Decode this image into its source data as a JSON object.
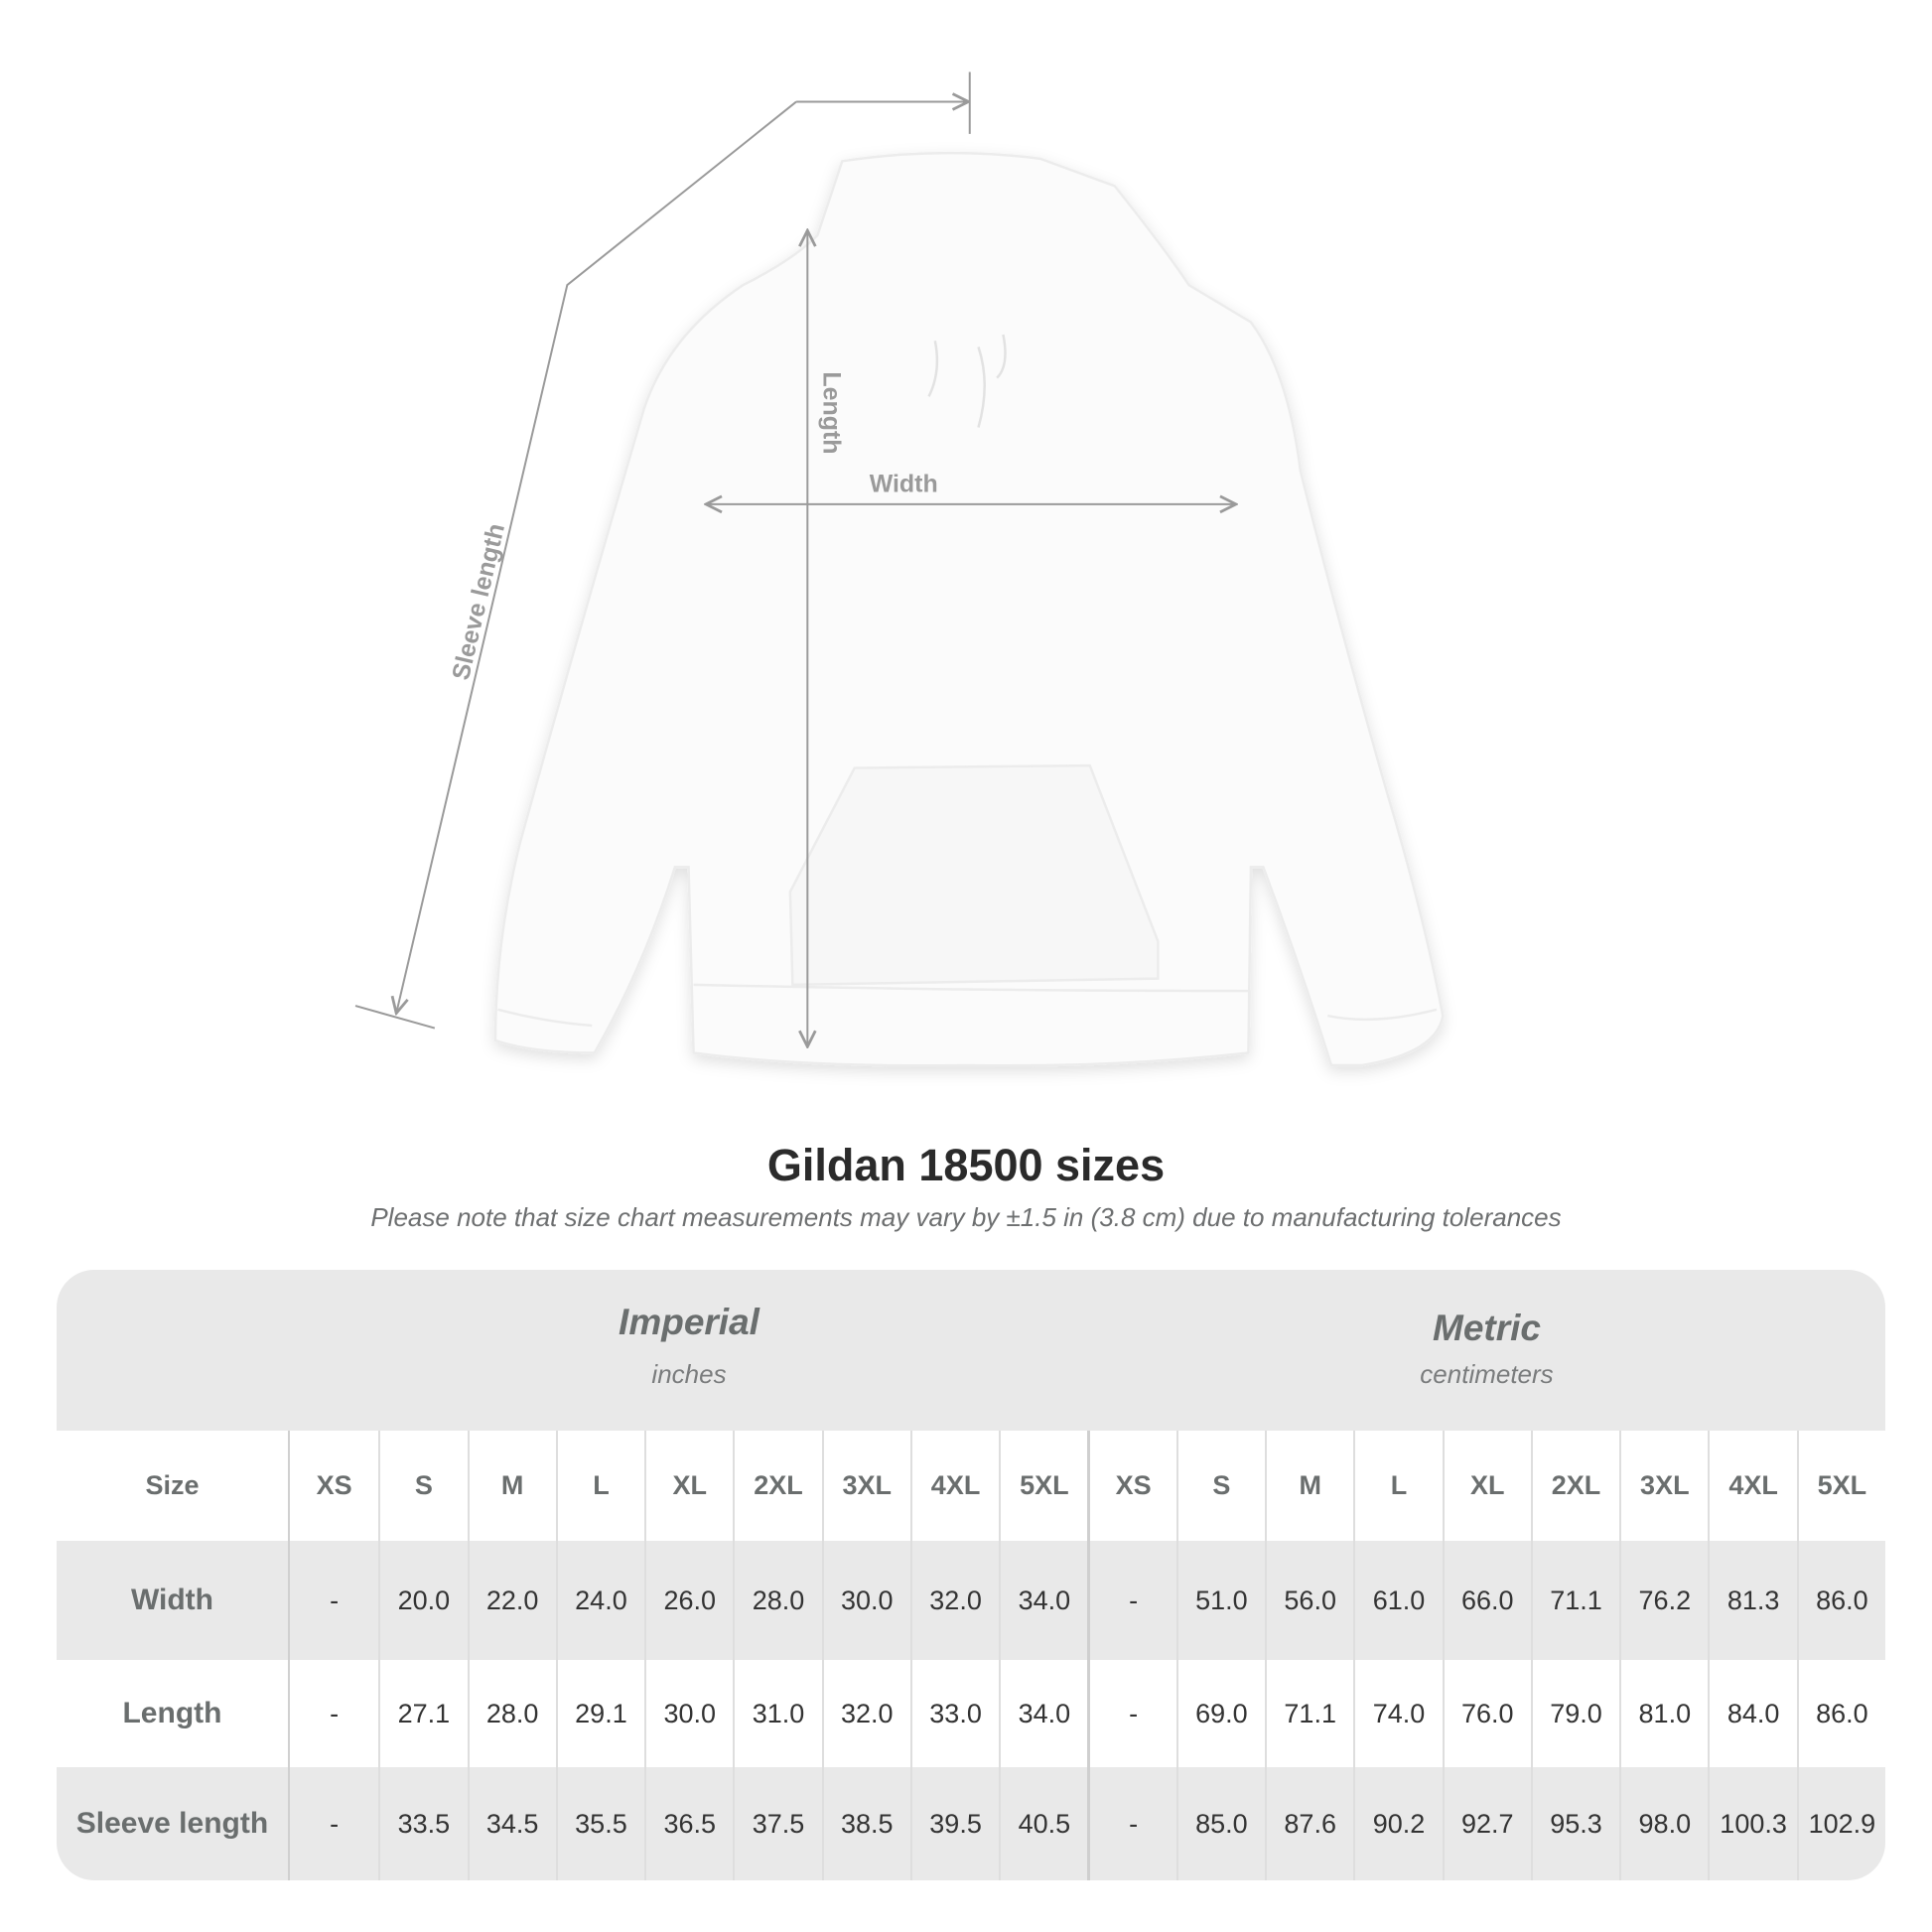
{
  "diagram": {
    "labels": {
      "sleeve": "Sleeve length",
      "length": "Length",
      "width": "Width"
    },
    "line_color": "#9a9a9a"
  },
  "title": "Gildan 18500 sizes",
  "subtitle": "Please note that size chart measurements may vary by ±1.5 in (3.8 cm) due to manufacturing tolerances",
  "table": {
    "imperial": {
      "name": "Imperial",
      "unit": "inches"
    },
    "metric": {
      "name": "Metric",
      "unit": "centimeters"
    },
    "size_label": "Size",
    "sizes": [
      "XS",
      "S",
      "M",
      "L",
      "XL",
      "2XL",
      "3XL",
      "4XL",
      "5XL"
    ],
    "rows": [
      {
        "label": "Width",
        "imperial": [
          "-",
          "20.0",
          "22.0",
          "24.0",
          "26.0",
          "28.0",
          "30.0",
          "32.0",
          "34.0"
        ],
        "metric": [
          "-",
          "51.0",
          "56.0",
          "61.0",
          "66.0",
          "71.1",
          "76.2",
          "81.3",
          "86.0"
        ]
      },
      {
        "label": "Length",
        "imperial": [
          "-",
          "27.1",
          "28.0",
          "29.1",
          "30.0",
          "31.0",
          "32.0",
          "33.0",
          "34.0"
        ],
        "metric": [
          "-",
          "69.0",
          "71.1",
          "74.0",
          "76.0",
          "79.0",
          "81.0",
          "84.0",
          "86.0"
        ]
      },
      {
        "label": "Sleeve length",
        "imperial": [
          "-",
          "33.5",
          "34.5",
          "35.5",
          "36.5",
          "37.5",
          "38.5",
          "39.5",
          "40.5"
        ],
        "metric": [
          "-",
          "85.0",
          "87.6",
          "90.2",
          "92.7",
          "95.3",
          "98.0",
          "100.3",
          "102.9"
        ]
      }
    ],
    "band_color": "#e9e9e9"
  }
}
